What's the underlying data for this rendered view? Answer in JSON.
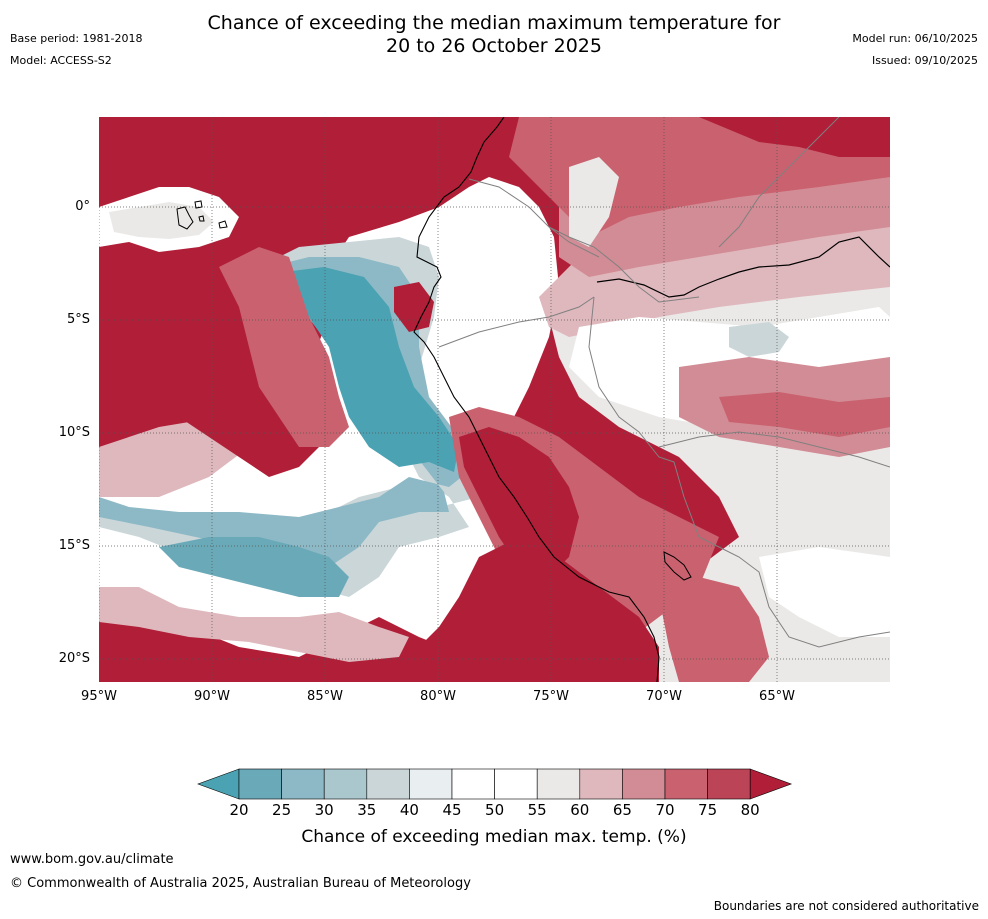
{
  "header": {
    "title_line1": "Chance of exceeding the median maximum temperature for",
    "title_line2": "20 to 26 October 2025",
    "base_period": "Base period: 1981-2018",
    "model": "Model: ACCESS-S2",
    "model_run": "Model run: 06/10/2025",
    "issued": "Issued: 09/10/2025"
  },
  "map": {
    "region": "Western South America (Ecuador, Peru, Bolivia, Chile) and Galapagos",
    "lat_labels": [
      "0°",
      "5°S",
      "10°S",
      "15°S",
      "20°S"
    ],
    "lon_labels": [
      "95°W",
      "90°W",
      "85°W",
      "80°W",
      "75°W",
      "70°W",
      "65°W"
    ],
    "lat_range": [
      -21.2,
      3.9
    ],
    "lon_range": [
      -95,
      -59.8
    ],
    "grid_lats": [
      0,
      -5,
      -10,
      -15,
      -20
    ],
    "grid_lons": [
      -95,
      -90,
      -85,
      -80,
      -75,
      -70,
      -65
    ]
  },
  "legend": {
    "title": "Chance of exceeding median max. temp. (%)",
    "ticks": [
      "20",
      "25",
      "30",
      "35",
      "40",
      "45",
      "50",
      "55",
      "60",
      "65",
      "70",
      "75",
      "80"
    ],
    "colors": [
      "#4aa2b3",
      "#6aaab8",
      "#8cb9c5",
      "#aac7cd",
      "#cbd6d9",
      "#e9eef0",
      "#ffffff",
      "#ffffff",
      "#ebe9e8",
      "#dfb8bd",
      "#d28c95",
      "#c9616f",
      "#bb4556",
      "#b01e38"
    ]
  },
  "footer": {
    "url": "www.bom.gov.au/climate",
    "copyright": "© Commonwealth of Australia 2025, Australian Bureau of Meteorology",
    "disclaimer": "Boundaries are not considered authoritative"
  }
}
